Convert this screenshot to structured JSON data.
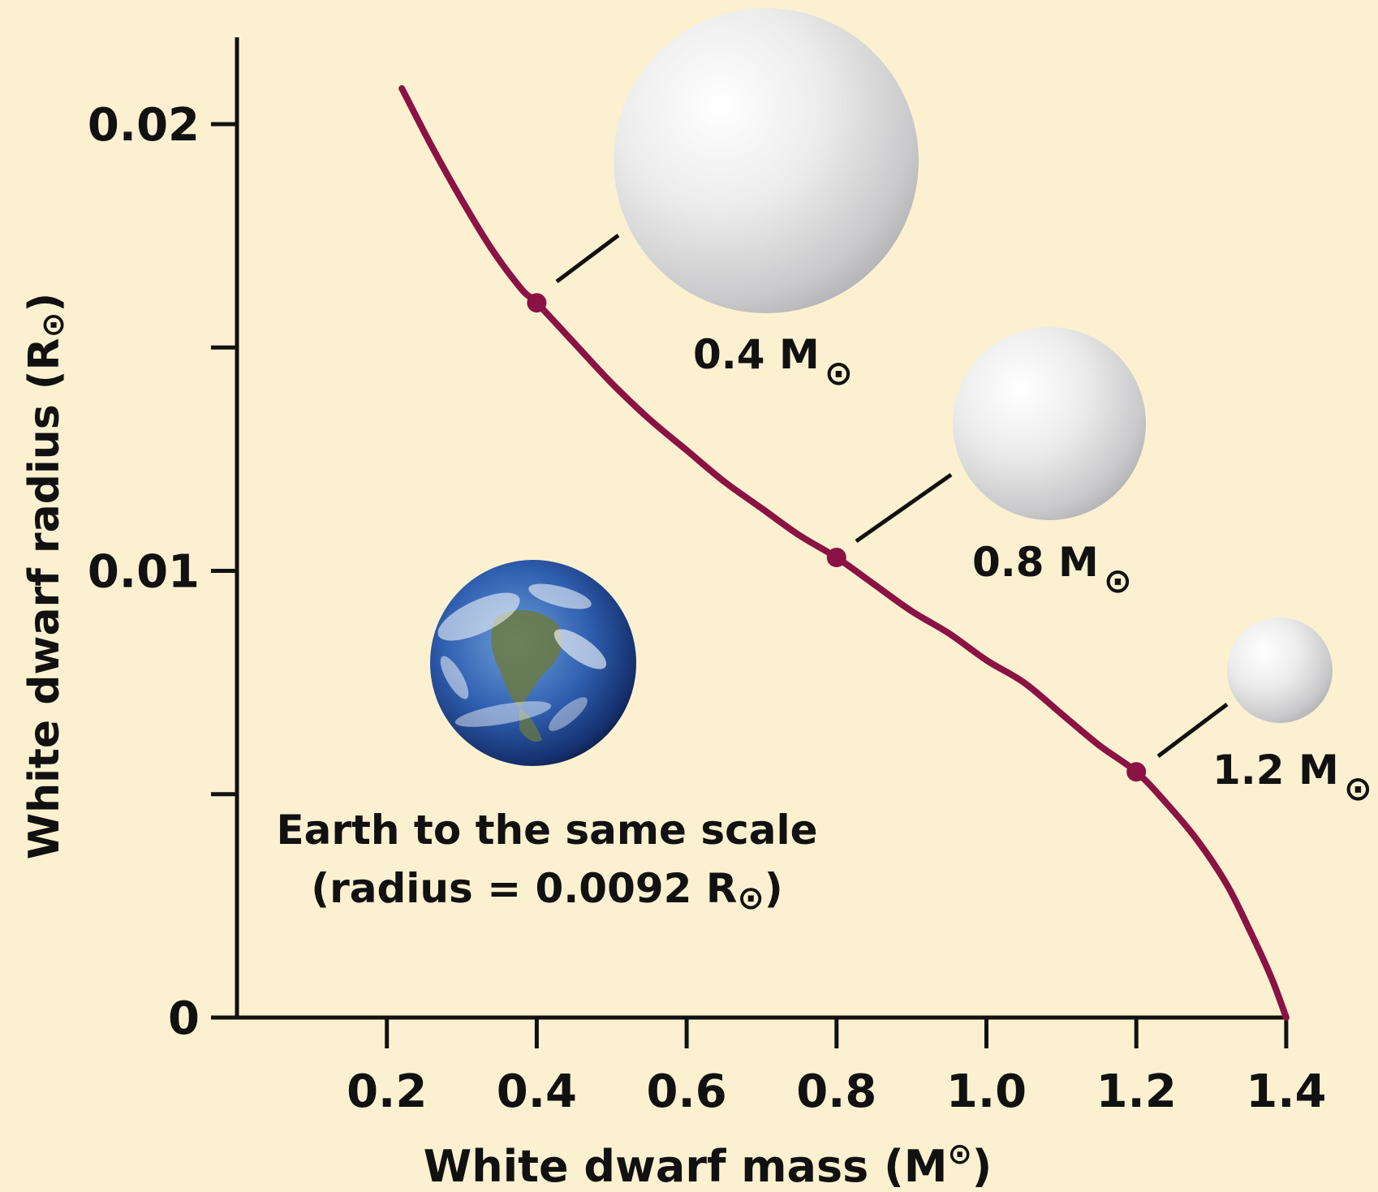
{
  "chart_data": {
    "type": "line",
    "xlabel": "White dwarf mass (M",
    "xlabel_symbol": "⊙",
    "xlabel_close": ")",
    "ylabel": "White dwarf radius (R",
    "ylabel_symbol": "⊙",
    "ylabel_close": ")",
    "xlim": [
      0,
      1.4
    ],
    "ylim": [
      0,
      0.02
    ],
    "x_ticks": [
      {
        "value": 0.2,
        "label": "0.2"
      },
      {
        "value": 0.4,
        "label": "0.4"
      },
      {
        "value": 0.6,
        "label": "0.6"
      },
      {
        "value": 0.8,
        "label": "0.8"
      },
      {
        "value": 1.0,
        "label": "1.0"
      },
      {
        "value": 1.2,
        "label": "1.2"
      },
      {
        "value": 1.4,
        "label": "1.4"
      }
    ],
    "y_ticks": [
      {
        "value": 0,
        "label": "0"
      },
      {
        "value": 0.005,
        "label": ""
      },
      {
        "value": 0.01,
        "label": "0.01"
      },
      {
        "value": 0.015,
        "label": ""
      },
      {
        "value": 0.02,
        "label": "0.02"
      }
    ],
    "grid": false,
    "series": [
      {
        "color": "#8b1244",
        "x": [
          0.22,
          0.26,
          0.3,
          0.34,
          0.38,
          0.4,
          0.45,
          0.5,
          0.55,
          0.6,
          0.65,
          0.7,
          0.75,
          0.8,
          0.85,
          0.9,
          0.95,
          1.0,
          1.05,
          1.1,
          1.15,
          1.2,
          1.24,
          1.28,
          1.32,
          1.35,
          1.38,
          1.4
        ],
        "y": [
          0.0208,
          0.0195,
          0.0183,
          0.0172,
          0.0163,
          0.016,
          0.0151,
          0.0142,
          0.0134,
          0.0127,
          0.012,
          0.0114,
          0.0108,
          0.0103,
          0.0097,
          0.0091,
          0.0086,
          0.008,
          0.0075,
          0.0068,
          0.0061,
          0.0055,
          0.0048,
          0.004,
          0.003,
          0.002,
          0.0009,
          0.0
        ]
      }
    ],
    "points": [
      {
        "x": 0.4,
        "y": 0.016,
        "label": "0.4 M",
        "symbol": "⊙"
      },
      {
        "x": 0.8,
        "y": 0.0103,
        "label": "0.8 M",
        "symbol": "⊙"
      },
      {
        "x": 1.2,
        "y": 0.0055,
        "label": "1.2 M",
        "symbol": "⊙"
      }
    ],
    "earth": {
      "label_line1": "Earth to the same scale",
      "label_line2": "(radius = 0.0092 R",
      "label_symbol": "⊙",
      "label_close": ")"
    },
    "colors": {
      "background": "#fbf1d1",
      "curve": "#8b1244",
      "axis": "#111111"
    }
  }
}
